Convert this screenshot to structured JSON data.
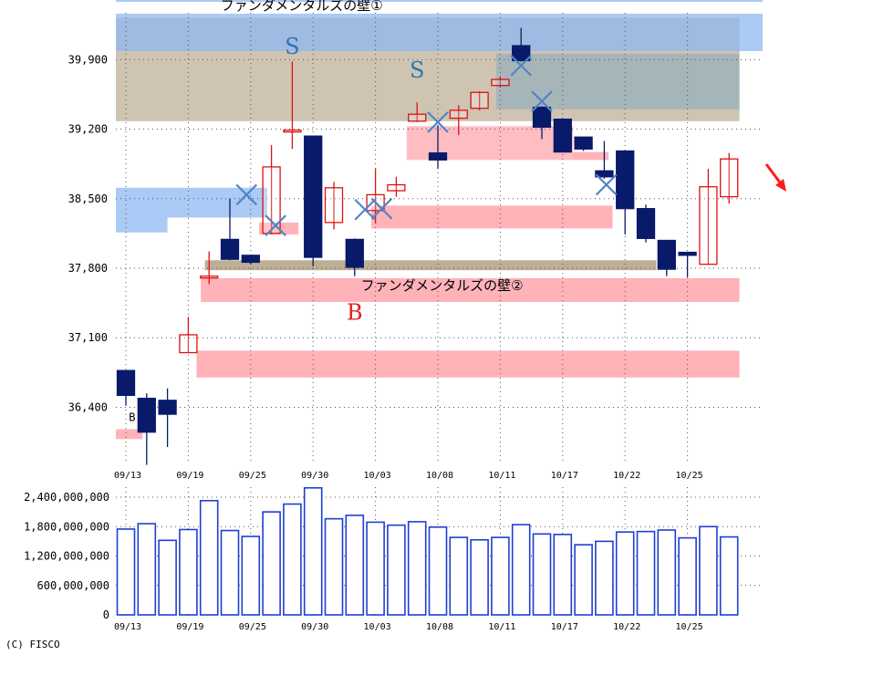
{
  "chart_data": [
    {
      "type": "candlestick",
      "title": "",
      "ylim": [
        36000,
        40500
      ],
      "y_ticks": [
        {
          "value": 36400,
          "label": "36,400"
        },
        {
          "value": 37100,
          "label": "37,100"
        },
        {
          "value": 37800,
          "label": "37,800"
        },
        {
          "value": 38500,
          "label": "38,500"
        },
        {
          "value": 39200,
          "label": "39,200"
        },
        {
          "value": 39900,
          "label": "39,900"
        }
      ],
      "x_tick_labels": [
        {
          "index": 0,
          "label": "09/13"
        },
        {
          "index": 3,
          "label": "09/19"
        },
        {
          "index": 6,
          "label": "09/25"
        },
        {
          "index": 9,
          "label": "09/30"
        },
        {
          "index": 12,
          "label": "10/03"
        },
        {
          "index": 15,
          "label": "10/08"
        },
        {
          "index": 18,
          "label": "10/11"
        },
        {
          "index": 21,
          "label": "10/17"
        },
        {
          "index": 24,
          "label": "10/22"
        },
        {
          "index": 27,
          "label": "10/25"
        }
      ],
      "grid": true,
      "up_color": "#dd1111",
      "down_color": "#0a1a6a",
      "candles": [
        {
          "open": 36770,
          "close": 36520,
          "high": 36770,
          "low": 36420
        },
        {
          "open": 36490,
          "close": 36150,
          "high": 36540,
          "low": 35820
        },
        {
          "open": 36470,
          "close": 36330,
          "high": 36590,
          "low": 36000
        },
        {
          "open": 36950,
          "close": 37130,
          "high": 37310,
          "low": 36950
        },
        {
          "open": 37710,
          "close": 37720,
          "high": 37970,
          "low": 37640
        },
        {
          "open": 38090,
          "close": 37890,
          "high": 38500,
          "low": 37880
        },
        {
          "open": 37930,
          "close": 37860,
          "high": 37930,
          "low": 37840
        },
        {
          "open": 38150,
          "close": 38820,
          "high": 39040,
          "low": 38140
        },
        {
          "open": 39190,
          "close": 39190,
          "high": 39880,
          "low": 39000
        },
        {
          "open": 39130,
          "close": 37910,
          "high": 39130,
          "low": 37820
        },
        {
          "open": 38260,
          "close": 38610,
          "high": 38670,
          "low": 38190
        },
        {
          "open": 38090,
          "close": 37810,
          "high": 38100,
          "low": 37720
        },
        {
          "open": 38380,
          "close": 38540,
          "high": 38800,
          "low": 38250
        },
        {
          "open": 38580,
          "close": 38640,
          "high": 38720,
          "low": 38520
        },
        {
          "open": 39280,
          "close": 39350,
          "high": 39470,
          "low": 39270
        },
        {
          "open": 38960,
          "close": 38890,
          "high": 39240,
          "low": 38800
        },
        {
          "open": 39310,
          "close": 39390,
          "high": 39440,
          "low": 39140
        },
        {
          "open": 39410,
          "close": 39570,
          "high": 39580,
          "low": 39390
        },
        {
          "open": 39640,
          "close": 39700,
          "high": 39730,
          "low": 39620
        },
        {
          "open": 40040,
          "close": 39890,
          "high": 40220,
          "low": 39880
        },
        {
          "open": 39420,
          "close": 39220,
          "high": 39430,
          "low": 39100
        },
        {
          "open": 39300,
          "close": 38970,
          "high": 39300,
          "low": 38970
        },
        {
          "open": 39120,
          "close": 39000,
          "high": 39120,
          "low": 38980
        },
        {
          "open": 38780,
          "close": 38720,
          "high": 39080,
          "low": 38700
        },
        {
          "open": 38980,
          "close": 38400,
          "high": 38980,
          "low": 38140
        },
        {
          "open": 38400,
          "close": 38100,
          "high": 38440,
          "low": 38060
        },
        {
          "open": 38080,
          "close": 37790,
          "high": 38080,
          "low": 37720
        },
        {
          "open": 37960,
          "close": 37930,
          "high": 37960,
          "low": 37710
        },
        {
          "open": 37840,
          "close": 38620,
          "high": 38800,
          "low": 37840
        },
        {
          "open": 38520,
          "close": 38900,
          "high": 38960,
          "low": 38450
        }
      ],
      "bands": [
        {
          "from_index": -0.5,
          "to_index": 29.5,
          "y1": 39280,
          "y2": 40320,
          "color": "#a79473",
          "opacity": 0.55
        },
        {
          "from_index": 17.8,
          "to_index": 29.5,
          "y1": 39400,
          "y2": 39960,
          "color": "#7ea6be",
          "opacity": 0.5
        },
        {
          "from_index": -0.5,
          "to_index": 2.0,
          "y1": 38160,
          "y2": 38610,
          "color": "#8fb8f2",
          "opacity": 0.75
        },
        {
          "from_index": 2.0,
          "to_index": 6.8,
          "y1": 38310,
          "y2": 38610,
          "color": "#8fb8f2",
          "opacity": 0.75
        },
        {
          "from_index": 3.8,
          "to_index": 25.5,
          "y1": 37780,
          "y2": 37880,
          "color": "#a79473",
          "opacity": 0.75
        },
        {
          "from_index": 6.4,
          "to_index": 8.3,
          "y1": 38140,
          "y2": 38260,
          "color": "#ff9aa2",
          "opacity": 0.75
        },
        {
          "from_index": 11.8,
          "to_index": 23.4,
          "y1": 38200,
          "y2": 38430,
          "color": "#ff9aa2",
          "opacity": 0.75
        },
        {
          "from_index": 13.5,
          "to_index": 21.5,
          "y1": 38890,
          "y2": 39230,
          "color": "#ff9aa2",
          "opacity": 0.65
        },
        {
          "from_index": 21.5,
          "to_index": 23.2,
          "y1": 38890,
          "y2": 38970,
          "color": "#ff9aa2",
          "opacity": 0.75
        },
        {
          "from_index": 3.6,
          "to_index": 29.5,
          "y1": 37460,
          "y2": 37700,
          "color": "#ff9aa2",
          "opacity": 0.75
        },
        {
          "from_index": 3.4,
          "to_index": 29.5,
          "y1": 36700,
          "y2": 36970,
          "color": "#ff9aa2",
          "opacity": 0.75
        },
        {
          "from_index": -0.5,
          "to_index": 0.8,
          "y1": 36080,
          "y2": 36180,
          "color": "#ff9aa2",
          "opacity": 0.75
        }
      ],
      "top_band": {
        "color": "#8fb8f2",
        "opacity": 0.75
      },
      "cross_marks": [
        {
          "index": 5.8,
          "value": 38540
        },
        {
          "index": 7.2,
          "value": 38230
        },
        {
          "index": 11.5,
          "value": 38390
        },
        {
          "index": 12.3,
          "value": 38400
        },
        {
          "index": 15.0,
          "value": 39270
        },
        {
          "index": 19.0,
          "value": 39840
        },
        {
          "index": 20.0,
          "value": 39480
        },
        {
          "index": 23.1,
          "value": 38640
        }
      ],
      "cross_color": "#4f86c6",
      "annotations": [
        {
          "text": "ファンダメンタルズの壁①",
          "index": 4.55,
          "value": 40400,
          "kind": "jp"
        },
        {
          "text": "ファンダメンタルズの壁②",
          "index": 11.3,
          "value": 37580,
          "kind": "jp"
        },
        {
          "text": "S",
          "index": 8.0,
          "value": 39960,
          "kind": "S",
          "color": "#2e75b6"
        },
        {
          "text": "S",
          "index": 14.0,
          "value": 39720,
          "kind": "S",
          "color": "#2e75b6"
        },
        {
          "text": "B",
          "index": 11.0,
          "value": 37280,
          "kind": "B",
          "color": "#e02020"
        },
        {
          "text": "B",
          "index": 0.3,
          "value": 36260,
          "kind": "small"
        }
      ],
      "arrow_color": "#ff1a1a"
    },
    {
      "type": "bar",
      "title": "",
      "ylim": [
        0,
        2600000000
      ],
      "y_ticks": [
        {
          "value": 0,
          "label": "0"
        },
        {
          "value": 600000000,
          "label": "600,000,000"
        },
        {
          "value": 1200000000,
          "label": "1,200,000,000"
        },
        {
          "value": 1800000000,
          "label": "1,800,000,000"
        },
        {
          "value": 2400000000,
          "label": "2,400,000,000"
        }
      ],
      "x_tick_labels": [
        {
          "index": 0,
          "label": "09/13"
        },
        {
          "index": 3,
          "label": "09/19"
        },
        {
          "index": 6,
          "label": "09/25"
        },
        {
          "index": 9,
          "label": "09/30"
        },
        {
          "index": 12,
          "label": "10/03"
        },
        {
          "index": 15,
          "label": "10/08"
        },
        {
          "index": 18,
          "label": "10/11"
        },
        {
          "index": 21,
          "label": "10/17"
        },
        {
          "index": 24,
          "label": "10/22"
        },
        {
          "index": 27,
          "label": "10/25"
        }
      ],
      "values": [
        1750000000,
        1860000000,
        1520000000,
        1740000000,
        2330000000,
        1720000000,
        1600000000,
        2100000000,
        2260000000,
        2590000000,
        1960000000,
        2030000000,
        1890000000,
        1830000000,
        1900000000,
        1790000000,
        1580000000,
        1530000000,
        1580000000,
        1840000000,
        1650000000,
        1640000000,
        1430000000,
        1500000000,
        1690000000,
        1700000000,
        1730000000,
        1570000000,
        1800000000,
        1590000000
      ],
      "color": "#1f3fd0",
      "grid": true
    }
  ],
  "footer": {
    "credit": "(C) FISCO"
  }
}
